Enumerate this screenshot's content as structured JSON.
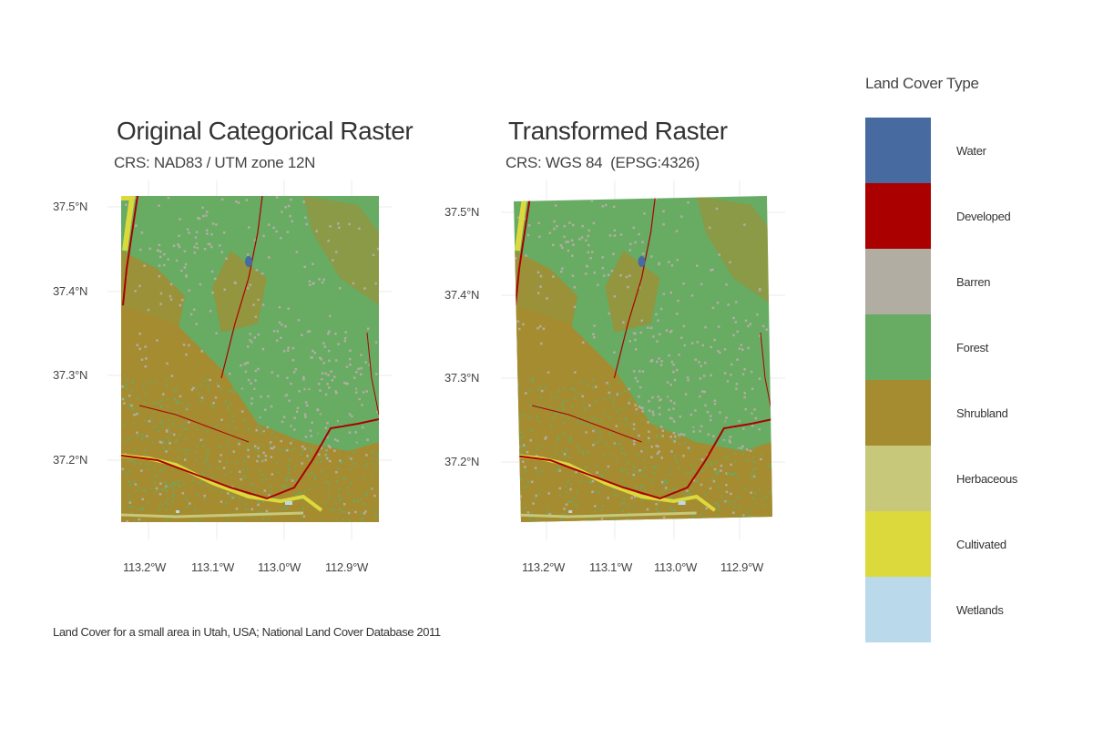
{
  "panels": [
    {
      "title": "Original Categorical Raster",
      "subtitle": "CRS: NAD83 / UTM zone 12N",
      "lat_ticks": [
        "37.5°N",
        "37.4°N",
        "37.3°N",
        "37.2°N"
      ],
      "lon_ticks": [
        "113.2°W",
        "113.1°W",
        "113.0°W",
        "112.9°W"
      ]
    },
    {
      "title": "Transformed Raster",
      "subtitle": "CRS: WGS 84  (EPSG:4326)",
      "lat_ticks": [
        "37.5°N",
        "37.4°N",
        "37.3°N",
        "37.2°N"
      ],
      "lon_ticks": [
        "113.2°W",
        "113.1°W",
        "113.0°W",
        "112.9°W"
      ]
    }
  ],
  "legend": {
    "title": "Land Cover Type",
    "items": [
      {
        "label": "Water",
        "color": "#476ba1"
      },
      {
        "label": "Developed",
        "color": "#ab0000"
      },
      {
        "label": "Barren",
        "color": "#b2ada3"
      },
      {
        "label": "Forest",
        "color": "#68ab63"
      },
      {
        "label": "Shrubland",
        "color": "#a58c30"
      },
      {
        "label": "Herbaceous",
        "color": "#c8c87a"
      },
      {
        "label": "Cultivated",
        "color": "#dcd93d"
      },
      {
        "label": "Wetlands",
        "color": "#bad9eb"
      }
    ]
  },
  "caption": "Land Cover for a small area in Utah, USA; National Land Cover Database 2011"
}
